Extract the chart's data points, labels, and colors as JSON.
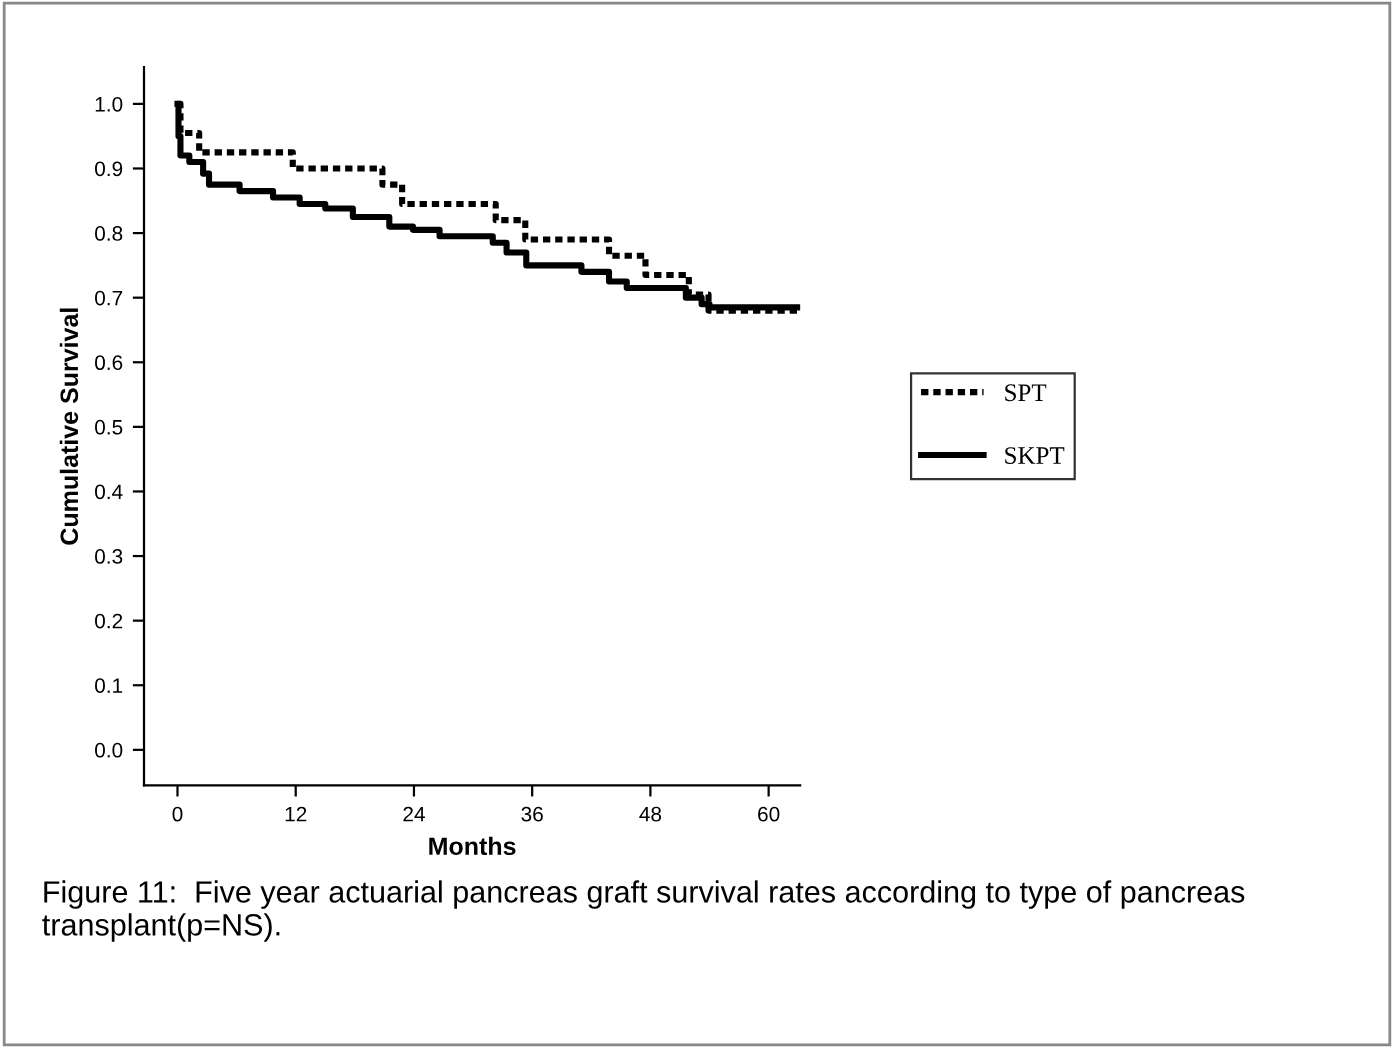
{
  "chart_data": {
    "type": "step",
    "xlabel": "Months",
    "ylabel": "Cumulative Survival",
    "annotations": [
      "Figure 11:  Five year actuarial pancreas graft survival rates according to type of pancreas transplant(p=NS)."
    ],
    "series": [
      {
        "name": "SPT",
        "color": "#000000",
        "line_style": "dotted",
        "x": [
          0,
          0.3,
          2.2,
          11.7,
          20.8,
          22.8,
          32.3,
          35.3,
          43.8,
          47.5,
          51.9,
          53.9,
          63
        ],
        "values": [
          1.0,
          0.955,
          0.925,
          0.9,
          0.875,
          0.845,
          0.82,
          0.79,
          0.765,
          0.735,
          0.705,
          0.68,
          0.68
        ]
      },
      {
        "name": "SKPT",
        "color": "#000000",
        "line_style": "solid",
        "x": [
          0,
          0.1,
          0.3,
          1.2,
          2.6,
          3.2,
          6.3,
          9.7,
          12.4,
          15,
          17.8,
          21.5,
          23.9,
          26.6,
          32,
          33.4,
          35.4,
          41,
          43.8,
          45.6,
          51.6,
          53.2,
          54,
          63
        ],
        "values": [
          1.0,
          0.95,
          0.92,
          0.91,
          0.892,
          0.875,
          0.865,
          0.855,
          0.845,
          0.838,
          0.825,
          0.81,
          0.805,
          0.795,
          0.785,
          0.77,
          0.75,
          0.74,
          0.725,
          0.715,
          0.7,
          0.69,
          0.685,
          0.685
        ]
      }
    ],
    "xlim": [
      -3.4,
      63.2
    ],
    "ylim": [
      -0.055,
      1.057
    ],
    "xticks": [
      0,
      12,
      24,
      36,
      48,
      60
    ],
    "yticks": [
      {
        "value": 0,
        "label": "0.0"
      },
      {
        "value": 0.1,
        "label": "0.1"
      },
      {
        "value": 0.2,
        "label": "0.2"
      },
      {
        "value": 0.3,
        "label": "0.3"
      },
      {
        "value": 0.4,
        "label": "0.4"
      },
      {
        "value": 0.5,
        "label": "0.5"
      },
      {
        "value": 0.6,
        "label": "0.6"
      },
      {
        "value": 0.7,
        "label": "0.7"
      },
      {
        "value": 0.8,
        "label": "0.8"
      },
      {
        "value": 0.9,
        "label": "0.9"
      },
      {
        "value": 1.0,
        "label": "1.0"
      }
    ],
    "grid": false,
    "legend": "right"
  }
}
